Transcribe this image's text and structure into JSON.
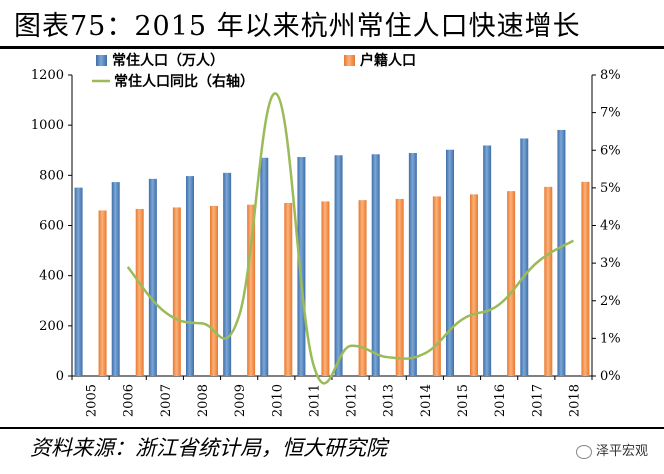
{
  "title": "图表75：2015 年以来杭州常住人口快速增长",
  "source": "资料来源：浙江省统计局，恒大研究院",
  "watermark": "泽平宏观",
  "chart_data": {
    "type": "bar",
    "categories": [
      "2005",
      "2006",
      "2007",
      "2008",
      "2009",
      "2010",
      "2011",
      "2012",
      "2013",
      "2014",
      "2015",
      "2016",
      "2017",
      "2018"
    ],
    "series": [
      {
        "name": "常住人口（万人）",
        "type": "bar",
        "axis": "left",
        "color": "#4f81bd",
        "values": [
          751,
          773,
          786,
          797,
          810,
          870,
          873,
          880,
          884,
          889,
          902,
          919,
          947,
          981
        ]
      },
      {
        "name": "户籍人口",
        "type": "bar",
        "axis": "left",
        "color": "#f79646",
        "values": [
          660,
          666,
          672,
          678,
          683,
          690,
          696,
          701,
          706,
          716,
          724,
          737,
          754,
          774
        ]
      },
      {
        "name": "常住人口同比（右轴）",
        "type": "line",
        "axis": "right",
        "color": "#9bbb59",
        "values": [
          null,
          2.9,
          1.7,
          1.4,
          1.6,
          7.5,
          0.3,
          0.8,
          0.5,
          0.6,
          1.5,
          1.9,
          3.0,
          3.6
        ]
      }
    ],
    "ylim": [
      0,
      1200
    ],
    "y_ticks": [
      0,
      200,
      400,
      600,
      800,
      1000,
      1200
    ],
    "y2lim": [
      0,
      8
    ],
    "y2_ticks": [
      "0%",
      "1%",
      "2%",
      "3%",
      "4%",
      "5%",
      "6%",
      "7%",
      "8%"
    ],
    "legend_position": "top",
    "grid": false
  }
}
